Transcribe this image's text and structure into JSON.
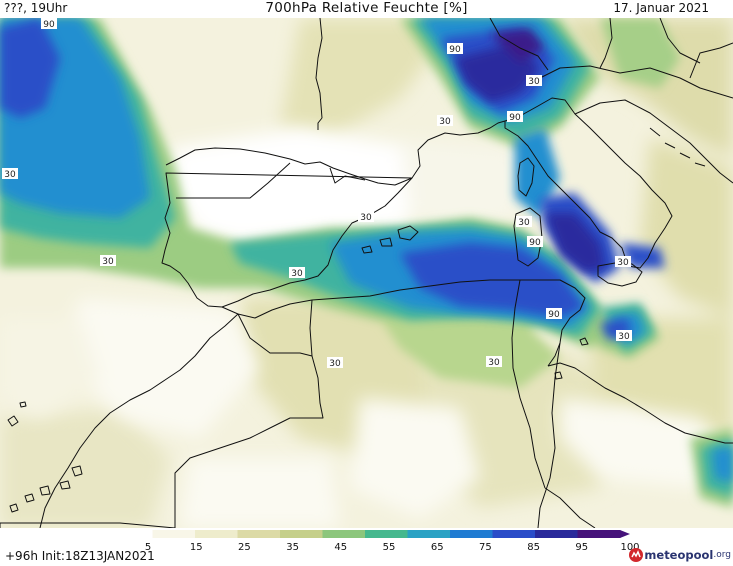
{
  "header": {
    "left": "???, 19Uhr",
    "title": "700hPa Relative Feuchte [%]",
    "date": "17. Januar 2021"
  },
  "footer": {
    "init": "+96h  Init:18Z13JAN2021"
  },
  "logo": {
    "text": "meteopool",
    "suffix": ".org"
  },
  "legend": {
    "ticks": [
      "5",
      "15",
      "25",
      "35",
      "45",
      "55",
      "65",
      "75",
      "85",
      "95",
      "100"
    ],
    "colors": [
      "#ffffff",
      "#f8f6e8",
      "#eeeccc",
      "#dcdaa6",
      "#c5cf8a",
      "#8cc67c",
      "#45b88e",
      "#2aa2c4",
      "#1f7bd2",
      "#2a4cc8",
      "#29299a",
      "#45127a"
    ]
  },
  "contour_labels": [
    {
      "text": "90"
    },
    {
      "text": "30"
    },
    {
      "text": "90"
    },
    {
      "text": "30"
    },
    {
      "text": "30"
    },
    {
      "text": "90"
    },
    {
      "text": "30"
    },
    {
      "text": "30"
    },
    {
      "text": "30"
    },
    {
      "text": "30"
    },
    {
      "text": "30"
    },
    {
      "text": "90"
    },
    {
      "text": "30"
    },
    {
      "text": "90"
    },
    {
      "text": "30"
    },
    {
      "text": "30"
    },
    {
      "text": "30"
    }
  ]
}
